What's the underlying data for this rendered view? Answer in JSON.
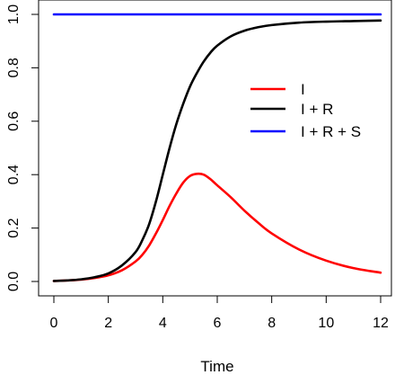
{
  "chart_data": {
    "type": "line",
    "title": "",
    "xlabel": "Time",
    "ylabel": "",
    "xlim": [
      0,
      12
    ],
    "ylim": [
      0,
      1
    ],
    "x_ticks": [
      "0",
      "2",
      "4",
      "6",
      "8",
      "10",
      "12"
    ],
    "y_ticks": [
      "0.0",
      "0.2",
      "0.4",
      "0.6",
      "0.8",
      "1.0"
    ],
    "grid": false,
    "legend_position": "right",
    "x": [
      0,
      0.5,
      1,
      1.5,
      2,
      2.5,
      3,
      3.25,
      3.5,
      3.75,
      4,
      4.25,
      4.5,
      4.75,
      5,
      5.25,
      5.5,
      5.75,
      6,
      6.5,
      7,
      7.5,
      8,
      9,
      10,
      11,
      12
    ],
    "series": [
      {
        "name": "I",
        "color": "#ff0000",
        "values": [
          0.002,
          0.004,
          0.007,
          0.013,
          0.023,
          0.042,
          0.075,
          0.1,
          0.135,
          0.18,
          0.23,
          0.283,
          0.33,
          0.37,
          0.395,
          0.403,
          0.4,
          0.383,
          0.36,
          0.315,
          0.265,
          0.22,
          0.18,
          0.12,
          0.078,
          0.05,
          0.033
        ]
      },
      {
        "name": "I + R",
        "color": "#000000",
        "values": [
          0.002,
          0.004,
          0.008,
          0.016,
          0.03,
          0.06,
          0.11,
          0.155,
          0.215,
          0.3,
          0.4,
          0.5,
          0.59,
          0.665,
          0.73,
          0.78,
          0.823,
          0.857,
          0.883,
          0.918,
          0.939,
          0.952,
          0.96,
          0.969,
          0.973,
          0.975,
          0.977
        ]
      },
      {
        "name": "I + R + S",
        "color": "#0000ff",
        "values": [
          1,
          1,
          1,
          1,
          1,
          1,
          1,
          1,
          1,
          1,
          1,
          1,
          1,
          1,
          1,
          1,
          1,
          1,
          1,
          1,
          1,
          1,
          1,
          1,
          1,
          1,
          1
        ]
      }
    ]
  }
}
